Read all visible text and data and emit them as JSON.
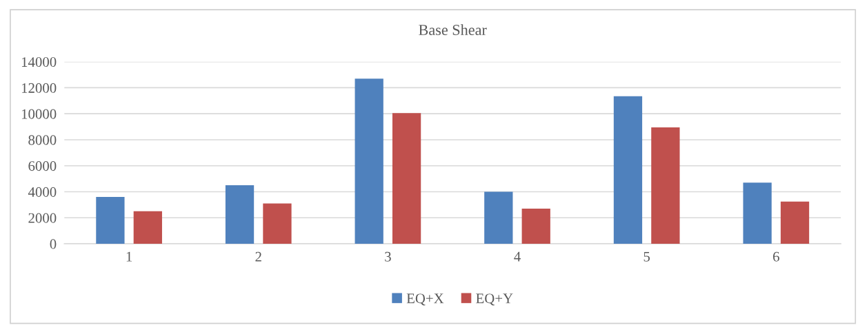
{
  "chart_data": {
    "type": "bar",
    "title": "Base Shear",
    "categories": [
      "1",
      "2",
      "3",
      "4",
      "5",
      "6"
    ],
    "series": [
      {
        "name": "EQ+X",
        "color": "#4f81bd",
        "values": [
          3600,
          4500,
          12700,
          4000,
          11350,
          4700
        ]
      },
      {
        "name": "EQ+Y",
        "color": "#c0504d",
        "values": [
          2500,
          3100,
          10050,
          2700,
          8950,
          3250
        ]
      }
    ],
    "ylim": [
      0,
      14000
    ],
    "yticks": [
      0,
      2000,
      4000,
      6000,
      8000,
      10000,
      12000,
      14000
    ],
    "grid": "y",
    "legend": "bottom"
  }
}
